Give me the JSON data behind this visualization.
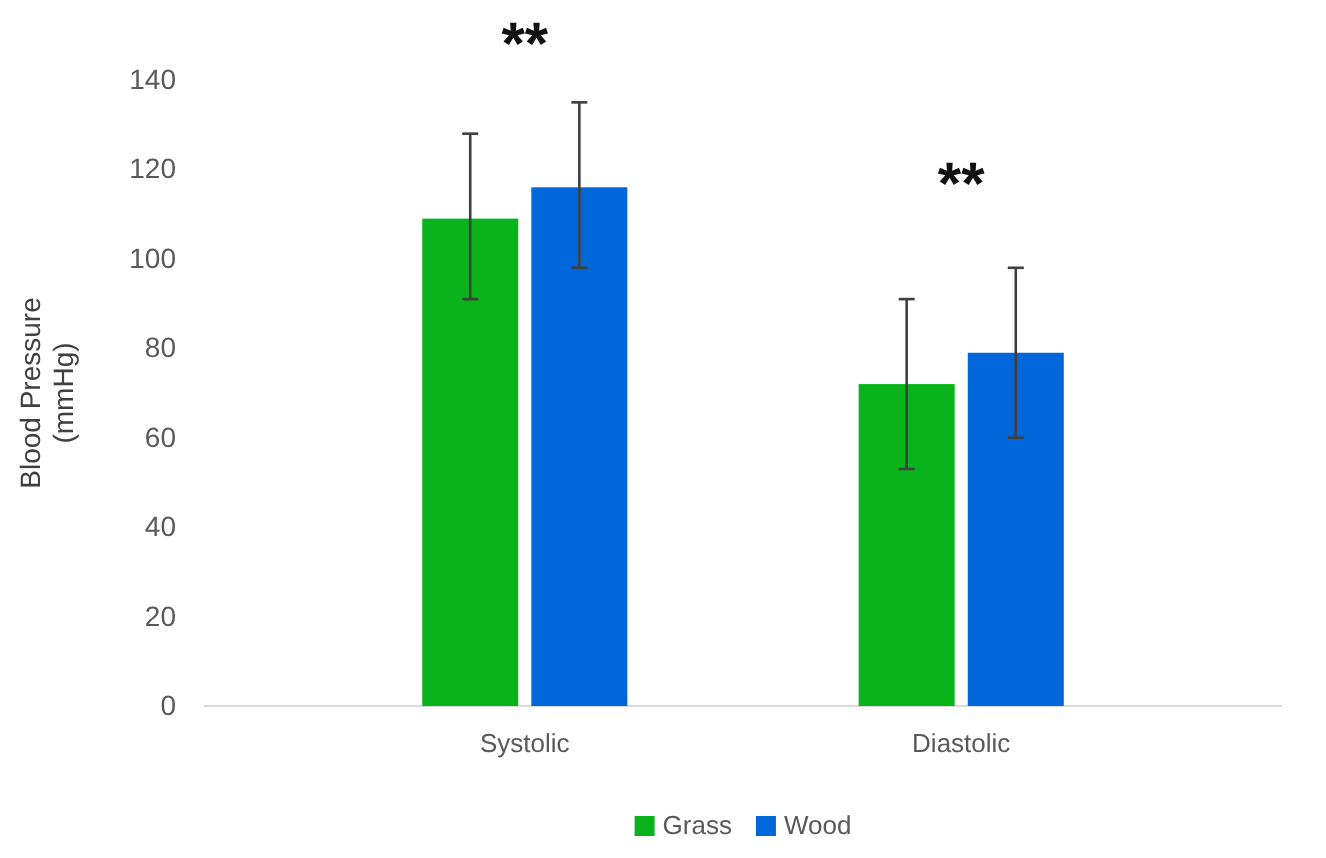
{
  "chart_data": {
    "type": "bar",
    "ylabel": "Blood Pressure (mmHg)",
    "categories": [
      "Systolic",
      "Diastolic"
    ],
    "series": [
      {
        "name": "Grass",
        "color": "#0ab31c",
        "values": [
          109,
          72
        ],
        "errors": [
          [
            91,
            128
          ],
          [
            53,
            91
          ]
        ]
      },
      {
        "name": "Wood",
        "color": "#0066d9",
        "values": [
          116,
          79
        ],
        "errors": [
          [
            98,
            135
          ],
          [
            60,
            98
          ]
        ]
      }
    ],
    "ylim": [
      0,
      140
    ],
    "yticks": [
      0,
      20,
      40,
      60,
      80,
      100,
      120,
      140
    ],
    "legend": "bottom",
    "annotations": [
      "**",
      "**"
    ]
  }
}
